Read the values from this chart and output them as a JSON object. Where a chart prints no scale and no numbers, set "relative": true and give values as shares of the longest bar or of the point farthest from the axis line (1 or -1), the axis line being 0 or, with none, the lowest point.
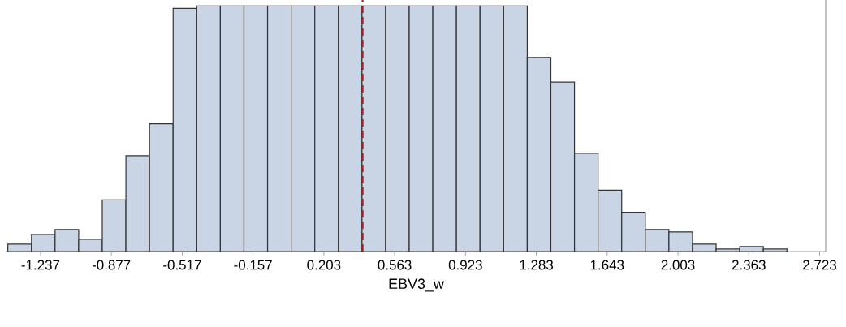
{
  "chart_data": {
    "type": "bar",
    "relative": true,
    "xlabel": "EBV3_w",
    "x": [
      -1.343,
      -1.223,
      -1.103,
      -0.983,
      -0.863,
      -0.743,
      -0.623,
      -0.503,
      -0.383,
      -0.263,
      -0.143,
      -0.023,
      0.097,
      0.217,
      0.337,
      0.457,
      0.577,
      0.697,
      0.817,
      0.937,
      1.057,
      1.177,
      1.297,
      1.417,
      1.537,
      1.657,
      1.777,
      1.897,
      2.017,
      2.137,
      2.257,
      2.377,
      2.497
    ],
    "values": [
      0.03,
      0.07,
      0.09,
      0.05,
      0.21,
      0.39,
      0.52,
      0.99,
      1,
      1,
      1,
      1,
      1,
      1,
      1,
      1,
      1,
      1,
      1,
      1,
      1,
      1,
      0.79,
      0.69,
      0.4,
      0.25,
      0.16,
      0.09,
      0.08,
      0.03,
      0.01,
      0.02,
      0.01
    ],
    "color": "#c9d5e5",
    "xlim": [
      -1.41,
      2.754
    ],
    "xticks": [
      -1.237,
      -0.877,
      -0.517,
      -0.157,
      0.203,
      0.563,
      0.923,
      1.283,
      1.643,
      2.003,
      2.363,
      2.723
    ],
    "ref_lines": [
      {
        "axis": "x",
        "value": 0.4,
        "color": "#b01c1c",
        "line_style": "dashed"
      }
    ]
  }
}
